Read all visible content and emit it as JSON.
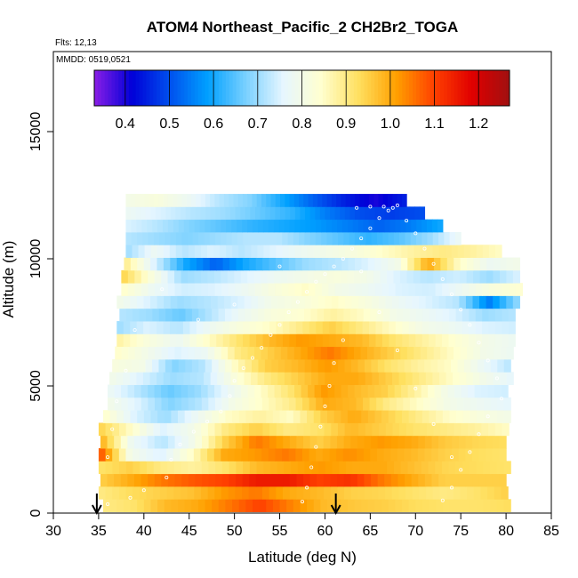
{
  "chart_data": {
    "type": "heatmap",
    "title": "ATOM4 Northeast_Pacific_2 CH2Br2_TOGA",
    "flights_label": "Flts: 12,13",
    "dates_label": "MMDD: 0519,0521",
    "xlabel": "Latitude (deg N)",
    "ylabel": "Altitude (m)",
    "xlim": [
      30,
      85
    ],
    "ylim": [
      0,
      17500
    ],
    "x_ticks": [
      "30",
      "35",
      "40",
      "45",
      "50",
      "55",
      "60",
      "65",
      "70",
      "75",
      "80",
      "85"
    ],
    "y_ticks": [
      "0",
      "5000",
      "10000",
      "15000"
    ],
    "colorbar": {
      "range": [
        0.33,
        1.27
      ],
      "ticks": [
        "0.4",
        "0.5",
        "0.6",
        "0.7",
        "0.8",
        "0.9",
        "1.0",
        "1.1",
        "1.2"
      ],
      "colors": [
        "#8a1ee6",
        "#0000d8",
        "#0050ee",
        "#00a0ff",
        "#78d0ff",
        "#e6f6ff",
        "#ffffd0",
        "#ffe060",
        "#ffa000",
        "#ff4000",
        "#e00000",
        "#a01010"
      ]
    },
    "marker_latitudes": [
      34.8,
      61.2
    ],
    "rows": [
      {
        "alt": 300,
        "lat": [
          35.5,
          80.5
        ],
        "vals": [
          0.9,
          0.92,
          0.98,
          1.0,
          1.05,
          1.1,
          1.04,
          0.98,
          0.96,
          0.95,
          0.93,
          0.92,
          0.92,
          0.93
        ]
      },
      {
        "alt": 800,
        "lat": [
          35.0,
          80.2
        ],
        "vals": [
          0.9,
          0.93,
          0.95,
          0.97,
          1.02,
          1.05,
          1.0,
          0.98,
          0.95,
          0.94,
          0.92,
          0.9,
          0.92,
          0.95
        ]
      },
      {
        "alt": 1300,
        "lat": [
          35.2,
          80.0
        ],
        "vals": [
          0.95,
          1.0,
          1.05,
          1.08,
          1.1,
          1.15,
          1.15,
          1.1,
          1.12,
          1.05,
          1.0,
          0.95,
          0.95,
          0.95
        ]
      },
      {
        "alt": 1800,
        "lat": [
          35.0,
          80.5
        ],
        "vals": [
          0.92,
          0.95,
          0.9,
          0.88,
          0.92,
          0.98,
          1.0,
          1.02,
          1.0,
          1.0,
          0.97,
          0.94,
          0.93,
          0.92
        ]
      },
      {
        "alt": 2300,
        "lat": [
          35.0,
          80.0
        ],
        "vals": [
          1.1,
          0.8,
          0.75,
          0.85,
          1.0,
          1.02,
          1.05,
          1.0,
          1.03,
          1.0,
          0.98,
          0.95,
          0.93,
          0.92
        ]
      },
      {
        "alt": 2800,
        "lat": [
          35.2,
          80.0
        ],
        "vals": [
          1.0,
          0.78,
          0.72,
          0.8,
          0.95,
          1.05,
          1.0,
          0.95,
          1.0,
          1.02,
          1.0,
          0.96,
          0.94,
          0.93
        ]
      },
      {
        "alt": 3300,
        "lat": [
          35.0,
          80.3
        ],
        "vals": [
          0.95,
          0.85,
          0.75,
          0.8,
          0.9,
          0.95,
          0.9,
          0.92,
          0.98,
          0.95,
          0.92,
          0.9,
          0.88,
          0.85
        ]
      },
      {
        "alt": 3800,
        "lat": [
          35.5,
          80.5
        ],
        "vals": [
          0.85,
          0.75,
          0.7,
          0.78,
          0.85,
          0.88,
          0.85,
          0.95,
          1.0,
          0.95,
          0.9,
          0.85,
          0.82,
          0.8
        ]
      },
      {
        "alt": 4300,
        "lat": [
          36.0,
          80.5
        ],
        "vals": [
          0.8,
          0.75,
          0.68,
          0.72,
          0.8,
          0.85,
          0.9,
          1.0,
          0.98,
          0.9,
          0.85,
          0.8,
          0.78,
          0.76
        ]
      },
      {
        "alt": 4800,
        "lat": [
          36.0,
          80.2
        ],
        "vals": [
          0.78,
          0.72,
          0.66,
          0.7,
          0.78,
          0.85,
          0.92,
          1.02,
          0.98,
          0.95,
          0.88,
          0.8,
          0.75,
          0.74
        ]
      },
      {
        "alt": 5300,
        "lat": [
          36.2,
          80.8
        ],
        "vals": [
          0.8,
          0.75,
          0.7,
          0.72,
          0.82,
          0.9,
          0.95,
          1.0,
          1.0,
          0.95,
          0.9,
          0.85,
          0.8,
          0.76
        ]
      },
      {
        "alt": 5800,
        "lat": [
          36.5,
          80.5
        ],
        "vals": [
          0.82,
          0.8,
          0.68,
          0.72,
          0.85,
          0.95,
          0.98,
          1.02,
          0.98,
          0.92,
          0.88,
          0.85,
          0.78,
          0.72
        ]
      },
      {
        "alt": 6300,
        "lat": [
          36.8,
          80.8
        ],
        "vals": [
          0.85,
          0.8,
          0.75,
          0.78,
          0.9,
          0.95,
          1.0,
          1.05,
          1.0,
          0.95,
          0.9,
          0.85,
          0.8,
          0.78
        ]
      },
      {
        "alt": 6800,
        "lat": [
          37.0,
          81.0
        ],
        "vals": [
          0.88,
          0.82,
          0.78,
          0.85,
          0.92,
          0.98,
          1.02,
          1.0,
          0.98,
          0.92,
          0.88,
          0.84,
          0.8,
          0.78
        ]
      },
      {
        "alt": 7300,
        "lat": [
          37.0,
          81.0
        ],
        "vals": [
          0.7,
          0.75,
          0.72,
          0.78,
          0.82,
          0.85,
          0.9,
          0.95,
          0.9,
          0.85,
          0.8,
          0.78,
          0.75,
          0.74
        ]
      },
      {
        "alt": 7800,
        "lat": [
          37.3,
          81.0
        ],
        "vals": [
          0.72,
          0.7,
          0.66,
          0.72,
          0.78,
          0.82,
          0.84,
          0.88,
          0.85,
          0.8,
          0.78,
          0.75,
          0.7,
          0.72
        ]
      },
      {
        "alt": 8300,
        "lat": [
          37.0,
          81.5
        ],
        "vals": [
          0.8,
          0.75,
          0.7,
          0.72,
          0.75,
          0.8,
          0.82,
          0.85,
          0.82,
          0.78,
          0.75,
          0.72,
          0.55,
          0.7
        ]
      },
      {
        "alt": 8800,
        "lat": [
          37.5,
          81.8
        ],
        "vals": [
          0.85,
          0.78,
          0.74,
          0.75,
          0.78,
          0.82,
          0.85,
          0.8,
          0.78,
          0.75,
          0.74,
          0.78,
          0.82,
          0.84
        ]
      },
      {
        "alt": 9300,
        "lat": [
          37.5,
          81.5
        ],
        "vals": [
          0.95,
          0.82,
          0.7,
          0.72,
          0.75,
          0.78,
          0.8,
          0.82,
          0.8,
          0.75,
          0.72,
          0.74,
          0.7,
          0.75
        ]
      },
      {
        "alt": 9800,
        "lat": [
          37.8,
          81.5
        ],
        "vals": [
          0.9,
          0.75,
          0.6,
          0.52,
          0.6,
          0.65,
          0.7,
          0.72,
          0.75,
          0.8,
          1.0,
          0.85,
          0.78,
          0.8
        ]
      },
      {
        "alt": 10300,
        "lat": [
          38.0,
          79.5
        ],
        "vals": [
          0.7,
          0.78,
          0.72,
          0.75,
          0.72,
          0.75,
          0.78,
          0.8,
          0.82,
          0.85,
          0.88,
          0.9,
          0.88,
          0.85
        ]
      },
      {
        "alt": 10800,
        "lat": [
          38.0,
          75.0
        ],
        "vals": [
          0.72,
          0.7,
          0.68,
          0.7,
          0.72,
          0.72,
          0.68,
          0.65,
          0.62,
          0.65,
          0.7,
          0.78
        ]
      },
      {
        "alt": 11300,
        "lat": [
          38.0,
          73.0
        ],
        "vals": [
          0.75,
          0.72,
          0.68,
          0.65,
          0.62,
          0.6,
          0.58,
          0.55,
          0.52,
          0.55,
          0.6
        ]
      },
      {
        "alt": 11800,
        "lat": [
          38.0,
          71.0
        ],
        "vals": [
          0.78,
          0.75,
          0.72,
          0.7,
          0.66,
          0.62,
          0.55,
          0.5,
          0.48,
          0.5
        ]
      },
      {
        "alt": 12300,
        "lat": [
          38.0,
          69.0
        ],
        "vals": [
          0.8,
          0.82,
          0.78,
          0.72,
          0.68,
          0.6,
          0.52,
          0.45,
          0.4,
          0.45
        ]
      }
    ],
    "sample_points": [
      [
        36.0,
        350
      ],
      [
        38.5,
        600
      ],
      [
        40.0,
        900
      ],
      [
        42.5,
        1400
      ],
      [
        43.0,
        2100
      ],
      [
        44.0,
        2700
      ],
      [
        45.5,
        3200
      ],
      [
        47.0,
        3600
      ],
      [
        48.5,
        4000
      ],
      [
        49.5,
        4600
      ],
      [
        50.0,
        5200
      ],
      [
        51.0,
        5700
      ],
      [
        52.0,
        6100
      ],
      [
        53.0,
        6500
      ],
      [
        54.0,
        7000
      ],
      [
        55.0,
        7400
      ],
      [
        56.0,
        7900
      ],
      [
        57.0,
        8300
      ],
      [
        58.0,
        8700
      ],
      [
        59.0,
        9100
      ],
      [
        60.0,
        9400
      ],
      [
        61.0,
        9700
      ],
      [
        62.0,
        10000
      ],
      [
        63.0,
        10400
      ],
      [
        64.0,
        10800
      ],
      [
        65.0,
        11200
      ],
      [
        66.0,
        11600
      ],
      [
        67.0,
        11900
      ],
      [
        68.0,
        12100
      ],
      [
        69.0,
        11500
      ],
      [
        70.0,
        11000
      ],
      [
        71.0,
        10400
      ],
      [
        72.0,
        9800
      ],
      [
        73.0,
        9200
      ],
      [
        74.0,
        8600
      ],
      [
        75.0,
        8000
      ],
      [
        76.0,
        7400
      ],
      [
        77.0,
        6700
      ],
      [
        78.0,
        6000
      ],
      [
        79.0,
        5300
      ],
      [
        79.5,
        4500
      ],
      [
        78.0,
        3800
      ],
      [
        77.0,
        3100
      ],
      [
        76.0,
        2400
      ],
      [
        75.0,
        1700
      ],
      [
        74.0,
        1000
      ],
      [
        73.0,
        500
      ],
      [
        62.0,
        6800
      ],
      [
        61.0,
        5900
      ],
      [
        60.5,
        5000
      ],
      [
        60.0,
        4200
      ],
      [
        59.5,
        3400
      ],
      [
        59.0,
        2600
      ],
      [
        58.5,
        1800
      ],
      [
        58.0,
        1000
      ],
      [
        57.5,
        450
      ],
      [
        55.0,
        9700
      ],
      [
        50.0,
        8200
      ],
      [
        46.0,
        7600
      ],
      [
        42.0,
        8800
      ],
      [
        39.0,
        7200
      ],
      [
        38.0,
        5600
      ],
      [
        37.0,
        4400
      ],
      [
        36.5,
        3300
      ],
      [
        36.0,
        2200
      ],
      [
        63.5,
        12000
      ],
      [
        65.0,
        12050
      ],
      [
        66.5,
        12050
      ],
      [
        67.5,
        12000
      ],
      [
        64.0,
        9500
      ],
      [
        66.0,
        7900
      ],
      [
        68.0,
        6400
      ],
      [
        70.0,
        4900
      ],
      [
        72.0,
        3500
      ],
      [
        74.0,
        2200
      ]
    ]
  }
}
